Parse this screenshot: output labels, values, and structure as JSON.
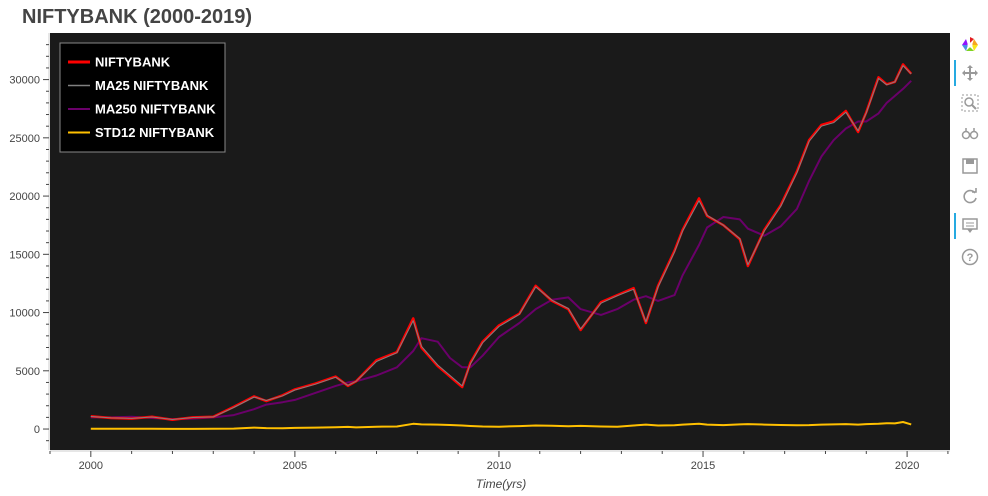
{
  "title": "NIFTYBANK (2000-2019)",
  "colors": {
    "plot_bg": "#1a1a1a",
    "niftybank": "#ff0000",
    "ma25": "#808080",
    "ma250": "#6a006a",
    "std12": "#ffc000",
    "axis": "#444444"
  },
  "toolbar": {
    "tools": [
      {
        "icon": "bokeh-logo-icon",
        "active": false
      },
      {
        "icon": "pan-icon",
        "active": true
      },
      {
        "icon": "box-zoom-icon",
        "active": false
      },
      {
        "icon": "wheel-zoom-icon",
        "active": false
      },
      {
        "icon": "save-icon",
        "active": false
      },
      {
        "icon": "reset-icon",
        "active": false
      },
      {
        "icon": "hover-icon",
        "active": true
      },
      {
        "icon": "help-icon",
        "active": false
      }
    ]
  },
  "chart_data": {
    "type": "line",
    "title": "NIFTYBANK (2000-2019)",
    "xlabel": "Time(yrs)",
    "ylabel": "",
    "xlim": [
      1999.0,
      2021.1
    ],
    "ylim": [
      -1800,
      34000
    ],
    "xticks": [
      2000,
      2005,
      2010,
      2015,
      2020
    ],
    "xtick_labels": [
      "2000",
      "2005",
      "2010",
      "2015",
      "2020"
    ],
    "yticks": [
      0,
      5000,
      10000,
      15000,
      20000,
      25000,
      30000
    ],
    "ytick_labels": [
      "0",
      "5000",
      "10000",
      "15000",
      "20000",
      "25000",
      "30000"
    ],
    "legend_position": "top-left",
    "grid": false,
    "x": [
      2000.0,
      2000.5,
      2001.0,
      2001.5,
      2002.0,
      2002.5,
      2003.0,
      2003.5,
      2004.0,
      2004.3,
      2004.7,
      2005.0,
      2005.5,
      2006.0,
      2006.3,
      2006.5,
      2007.0,
      2007.5,
      2007.9,
      2008.1,
      2008.5,
      2008.8,
      2009.1,
      2009.3,
      2009.6,
      2010.0,
      2010.5,
      2010.9,
      2011.3,
      2011.7,
      2012.0,
      2012.5,
      2012.9,
      2013.3,
      2013.6,
      2013.9,
      2014.3,
      2014.5,
      2014.9,
      2015.1,
      2015.5,
      2015.9,
      2016.1,
      2016.5,
      2016.9,
      2017.3,
      2017.6,
      2017.9,
      2018.2,
      2018.5,
      2018.8,
      2019.0,
      2019.3,
      2019.5,
      2019.7,
      2019.9,
      2020.1
    ],
    "series": [
      {
        "name": "NIFTYBANK",
        "values": [
          1100,
          950,
          900,
          1050,
          800,
          1000,
          1050,
          1900,
          2800,
          2400,
          2900,
          3400,
          3900,
          4500,
          3700,
          4100,
          5900,
          6600,
          9500,
          7000,
          5400,
          4500,
          3600,
          5700,
          7500,
          8900,
          9900,
          12300,
          11000,
          10300,
          8500,
          10900,
          11500,
          12100,
          9100,
          12300,
          15300,
          17100,
          19800,
          18300,
          17500,
          16300,
          14000,
          17100,
          19200,
          22100,
          24800,
          26100,
          26400,
          27300,
          25500,
          27200,
          30200,
          29600,
          29800,
          31300,
          30500
        ]
      },
      {
        "name": "MA25 NIFTYBANK",
        "values": [
          1080,
          960,
          910,
          1030,
          820,
          990,
          1040,
          1850,
          2750,
          2450,
          2850,
          3350,
          3850,
          4450,
          3750,
          4100,
          5800,
          6550,
          9300,
          7100,
          5500,
          4600,
          3700,
          5600,
          7400,
          8800,
          9850,
          12200,
          11050,
          10350,
          8600,
          10800,
          11450,
          12000,
          9200,
          12200,
          15200,
          17000,
          19600,
          18350,
          17500,
          16350,
          14100,
          17000,
          19100,
          22000,
          24700,
          26000,
          26300,
          27200,
          25600,
          27150,
          30100,
          29550,
          29800,
          31200,
          30500
        ]
      },
      {
        "name": "MA250 NIFTYBANK",
        "values": [
          1000,
          1000,
          1050,
          950,
          850,
          900,
          1000,
          1200,
          1700,
          2100,
          2300,
          2500,
          3100,
          3700,
          4000,
          4100,
          4600,
          5300,
          6700,
          7800,
          7500,
          6100,
          5300,
          5300,
          6300,
          7900,
          9100,
          10300,
          11100,
          11300,
          10300,
          9800,
          10300,
          11100,
          11400,
          11000,
          11500,
          13200,
          15800,
          17300,
          18200,
          18000,
          17200,
          16600,
          17400,
          18900,
          21300,
          23400,
          24800,
          25800,
          26400,
          26400,
          27100,
          28000,
          28600,
          29200,
          29900
        ]
      },
      {
        "name": "STD12 NIFTYBANK",
        "values": [
          30,
          20,
          20,
          20,
          15,
          15,
          20,
          40,
          120,
          80,
          60,
          100,
          120,
          150,
          180,
          140,
          200,
          220,
          450,
          400,
          380,
          350,
          300,
          260,
          220,
          200,
          250,
          300,
          280,
          240,
          270,
          220,
          200,
          300,
          380,
          300,
          320,
          380,
          450,
          380,
          340,
          400,
          420,
          380,
          350,
          320,
          340,
          380,
          400,
          420,
          380,
          420,
          450,
          500,
          480,
          600,
          400
        ]
      }
    ]
  }
}
